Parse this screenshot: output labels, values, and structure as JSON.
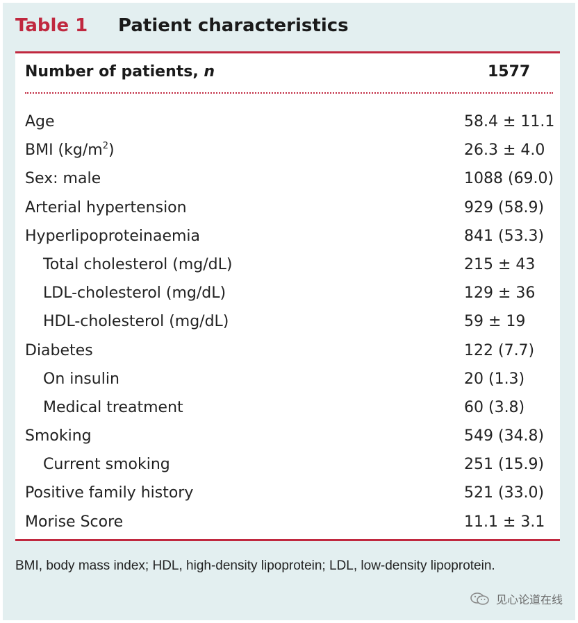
{
  "table": {
    "label": "Table 1",
    "title": "Patient characteristics",
    "header": {
      "col1": "Number of patients, ",
      "col1_italic": "n",
      "col2": "1577"
    },
    "rows": [
      {
        "label": "Age",
        "value": "58.4 ± 11.1"
      },
      {
        "label": "BMI (kg/m",
        "label_sup": "2",
        "label_suffix": ")",
        "value": "26.3 ± 4.0"
      },
      {
        "label": "Sex: male",
        "value": "1088 (69.0)"
      },
      {
        "label": "Arterial hypertension",
        "value": "929 (58.9)"
      },
      {
        "label": "Hyperlipoproteinaemia",
        "value": "841 (53.3)"
      },
      {
        "label": "Total cholesterol (mg/dL)",
        "value": "215 ± 43"
      },
      {
        "label": "LDL-cholesterol (mg/dL)",
        "value": "129 ± 36"
      },
      {
        "label": "HDL-cholesterol (mg/dL)",
        "value": "59 ± 19"
      },
      {
        "label": "Diabetes",
        "value": "122 (7.7)"
      },
      {
        "label": "On insulin",
        "value": "20 (1.3)"
      },
      {
        "label": "Medical treatment",
        "value": "60 (3.8)"
      },
      {
        "label": "Smoking",
        "value": "549 (34.8)"
      },
      {
        "label": "Current smoking",
        "value": "251 (15.9)"
      },
      {
        "label": "Positive family history",
        "value": "521 (33.0)"
      },
      {
        "label": "Morise Score",
        "value": "11.1 ± 3.1"
      }
    ],
    "footnote": "BMI, body mass index; HDL, high-density lipoprotein; LDL, low-density lipoprotein."
  },
  "watermark": {
    "text": "见心论道在线",
    "icon": "wechat-icon"
  },
  "colors": {
    "accent": "#c0283f",
    "frame_bg": "#e3eff0",
    "panel_bg": "#ffffff",
    "text": "#222222"
  }
}
